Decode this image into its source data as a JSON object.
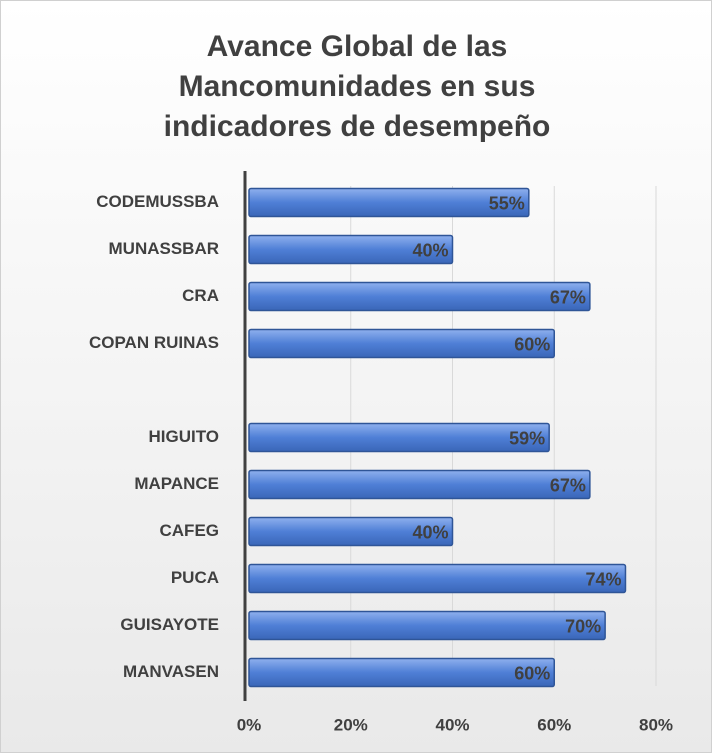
{
  "chart_data": {
    "type": "bar",
    "orientation": "horizontal",
    "title": "Avance Global de las Mancomunidades en sus indicadores de desempeño",
    "categories": [
      "CODEMUSSBA",
      "MUNASSBAR",
      "CRA",
      "COPAN RUINAS",
      null,
      "HIGUITO",
      "MAPANCE",
      "CAFEG",
      "PUCA",
      "GUISAYOTE",
      "MANVASEN"
    ],
    "values": [
      55,
      40,
      67,
      60,
      null,
      59,
      67,
      40,
      74,
      70,
      60
    ],
    "value_labels": [
      "55%",
      "40%",
      "67%",
      "60%",
      null,
      "59%",
      "67%",
      "40%",
      "74%",
      "70%",
      "60%"
    ],
    "color": "#4f7fd6",
    "xlim": [
      0,
      80
    ],
    "xticks": [
      {
        "value": 0,
        "label": "0%"
      },
      {
        "value": 20,
        "label": "20%"
      },
      {
        "value": 40,
        "label": "40%"
      },
      {
        "value": 60,
        "label": "60%"
      },
      {
        "value": 80,
        "label": "80%"
      }
    ],
    "grid": true
  }
}
